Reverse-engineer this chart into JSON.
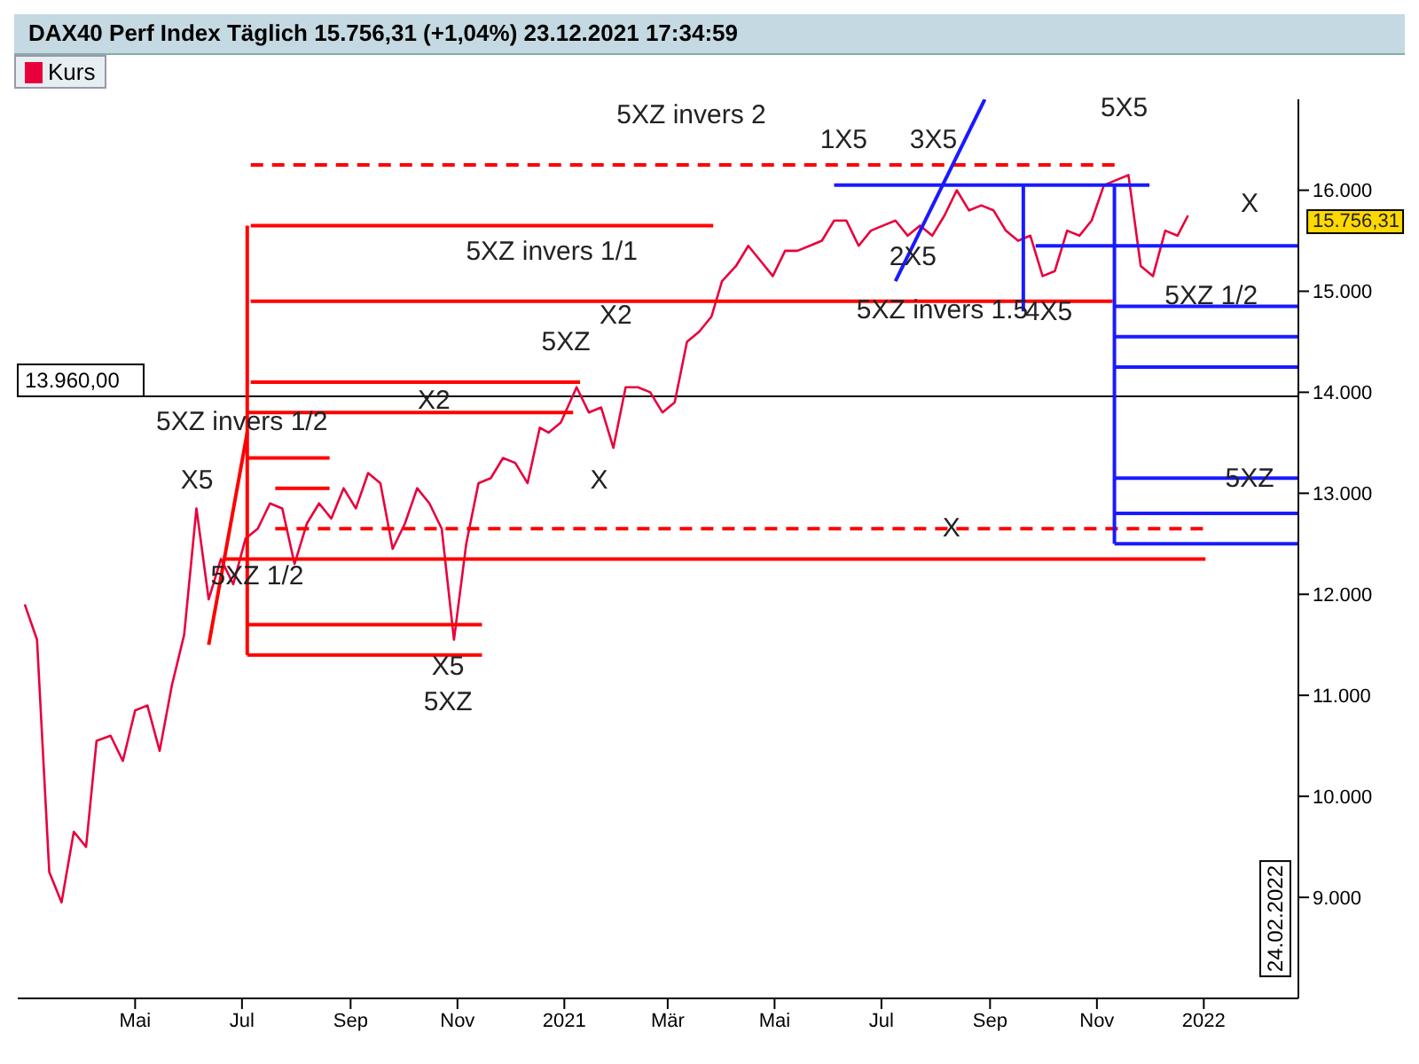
{
  "chart_data": {
    "type": "line",
    "title": "DAX40 Perf Index Täglich 15.756,31 (+1,04%) 23.12.2021 17:34:59",
    "legend": "top left",
    "marker": "none",
    "grid": false,
    "xlim": [
      "2020-02-24",
      "2022-02-24"
    ],
    "xticks": [
      {
        "value": "2020-05-01",
        "label": "Mai"
      },
      {
        "value": "2020-07-01",
        "label": "Jul"
      },
      {
        "value": "2020-09-01",
        "label": "Sep"
      },
      {
        "value": "2020-11-01",
        "label": "Nov"
      },
      {
        "value": "2021-01-01",
        "label": "2021"
      },
      {
        "value": "2021-03-01",
        "label": "Mär"
      },
      {
        "value": "2021-05-01",
        "label": "Mai"
      },
      {
        "value": "2021-07-01",
        "label": "Jul"
      },
      {
        "value": "2021-09-01",
        "label": "Sep"
      },
      {
        "value": "2021-11-01",
        "label": "Nov"
      },
      {
        "value": "2022-01-01",
        "label": "2022"
      }
    ],
    "ylim": [
      8000,
      16900
    ],
    "yticks": [
      {
        "value": 9000,
        "label": "9.000"
      },
      {
        "value": 10000,
        "label": "10.000"
      },
      {
        "value": 11000,
        "label": "11.000"
      },
      {
        "value": 12000,
        "label": "12.000"
      },
      {
        "value": 13000,
        "label": "13.000"
      },
      {
        "value": 14000,
        "label": "14.000"
      },
      {
        "value": 15000,
        "label": "15.000"
      },
      {
        "value": 16000,
        "label": "16.000"
      }
    ],
    "series": [
      {
        "name": "Kurs",
        "color": "#e8003d",
        "x": [
          "2020-02-28",
          "2020-03-06",
          "2020-03-13",
          "2020-03-20",
          "2020-03-27",
          "2020-04-03",
          "2020-04-09",
          "2020-04-17",
          "2020-04-24",
          "2020-05-01",
          "2020-05-08",
          "2020-05-15",
          "2020-05-22",
          "2020-05-29",
          "2020-06-05",
          "2020-06-12",
          "2020-06-19",
          "2020-06-26",
          "2020-07-03",
          "2020-07-10",
          "2020-07-17",
          "2020-07-24",
          "2020-07-31",
          "2020-08-07",
          "2020-08-14",
          "2020-08-21",
          "2020-08-28",
          "2020-09-04",
          "2020-09-11",
          "2020-09-18",
          "2020-09-25",
          "2020-10-02",
          "2020-10-09",
          "2020-10-16",
          "2020-10-23",
          "2020-10-30",
          "2020-11-06",
          "2020-11-13",
          "2020-11-20",
          "2020-11-27",
          "2020-12-04",
          "2020-12-11",
          "2020-12-18",
          "2020-12-23",
          "2020-12-30",
          "2021-01-08",
          "2021-01-15",
          "2021-01-22",
          "2021-01-29",
          "2021-02-05",
          "2021-02-12",
          "2021-02-19",
          "2021-02-26",
          "2021-03-05",
          "2021-03-12",
          "2021-03-19",
          "2021-03-26",
          "2021-04-01",
          "2021-04-09",
          "2021-04-16",
          "2021-04-23",
          "2021-04-30",
          "2021-05-07",
          "2021-05-14",
          "2021-05-21",
          "2021-05-28",
          "2021-06-04",
          "2021-06-11",
          "2021-06-18",
          "2021-06-25",
          "2021-07-02",
          "2021-07-09",
          "2021-07-16",
          "2021-07-23",
          "2021-07-30",
          "2021-08-06",
          "2021-08-13",
          "2021-08-20",
          "2021-08-27",
          "2021-09-03",
          "2021-09-10",
          "2021-09-17",
          "2021-09-24",
          "2021-10-01",
          "2021-10-08",
          "2021-10-15",
          "2021-10-22",
          "2021-10-29",
          "2021-11-05",
          "2021-11-12",
          "2021-11-19",
          "2021-11-26",
          "2021-12-03",
          "2021-12-10",
          "2021-12-17",
          "2021-12-23"
        ],
        "values": [
          11900,
          11550,
          9250,
          8950,
          9650,
          9500,
          10550,
          10600,
          10350,
          10850,
          10900,
          10450,
          11100,
          11600,
          12850,
          11950,
          12350,
          12100,
          12550,
          12650,
          12900,
          12850,
          12300,
          12700,
          12900,
          12750,
          13050,
          12850,
          13200,
          13100,
          12450,
          12700,
          13050,
          12900,
          12650,
          11550,
          12500,
          13100,
          13150,
          13350,
          13300,
          13100,
          13650,
          13600,
          13700,
          14050,
          13800,
          13850,
          13450,
          14050,
          14050,
          14000,
          13800,
          13900,
          14500,
          14600,
          14750,
          15100,
          15250,
          15450,
          15300,
          15150,
          15400,
          15400,
          15450,
          15500,
          15700,
          15700,
          15450,
          15600,
          15650,
          15700,
          15550,
          15650,
          15550,
          15750,
          16000,
          15800,
          15850,
          15800,
          15600,
          15500,
          15550,
          15150,
          15200,
          15600,
          15550,
          15700,
          16050,
          16100,
          16150,
          15250,
          15150,
          15600,
          15550,
          15750
        ]
      },
      {
        "color": "#ff0000",
        "line_style": "dashed",
        "x": [
          "2020-07-06",
          "2021-11-15"
        ],
        "values": [
          16250,
          16250
        ]
      },
      {
        "color": "#ff0000",
        "x": [
          "2020-07-06",
          "2021-03-27"
        ],
        "values": [
          15650,
          15650
        ]
      },
      {
        "color": "#ff0000",
        "x": [
          "2020-07-06",
          "2021-11-10"
        ],
        "values": [
          14900,
          14900
        ]
      },
      {
        "color": "#ff0000",
        "x": [
          "2020-07-06",
          "2021-01-10"
        ],
        "values": [
          14100,
          14100
        ]
      },
      {
        "color": "#ff0000",
        "x": [
          "2020-07-04",
          "2021-01-06"
        ],
        "values": [
          13800,
          13800
        ]
      },
      {
        "color": "#ff0000",
        "x": [
          "2020-07-04",
          "2020-08-20"
        ],
        "values": [
          13350,
          13350
        ]
      },
      {
        "color": "#ff0000",
        "x": [
          "2020-07-20",
          "2020-08-20"
        ],
        "values": [
          13050,
          13050
        ]
      },
      {
        "color": "#ff0000",
        "line_style": "dashed",
        "x": [
          "2020-07-20",
          "2022-01-01"
        ],
        "values": [
          12650,
          12650
        ]
      },
      {
        "color": "#ff0000",
        "x": [
          "2020-06-20",
          "2022-01-02"
        ],
        "values": [
          12350,
          12350
        ]
      },
      {
        "color": "#ff0000",
        "x": [
          "2020-07-04",
          "2020-11-15"
        ],
        "values": [
          11700,
          11700
        ]
      },
      {
        "color": "#ff0000",
        "x": [
          "2020-07-04",
          "2020-11-15"
        ],
        "values": [
          11400,
          11400
        ]
      },
      {
        "color": "#ff0000",
        "x": [
          "2020-07-04",
          "2020-07-04"
        ],
        "values": [
          11400,
          15650
        ]
      },
      {
        "color": "#ff0000",
        "x": [
          "2020-06-12",
          "2020-07-04"
        ],
        "values": [
          11500,
          13600
        ]
      },
      {
        "color": "#1a1aff",
        "x": [
          "2021-06-04",
          "2021-12-01"
        ],
        "values": [
          16050,
          16050
        ]
      },
      {
        "color": "#1a1aff",
        "x": [
          "2021-07-09",
          "2021-08-29"
        ],
        "values": [
          15100,
          16900
        ]
      },
      {
        "color": "#1a1aff",
        "x": [
          "2021-09-20",
          "2021-09-20"
        ],
        "values": [
          14800,
          16050
        ]
      },
      {
        "color": "#1a1aff",
        "x": [
          "2021-09-27",
          "2022-02-24"
        ],
        "values": [
          15450,
          15450
        ]
      },
      {
        "color": "#1a1aff",
        "x": [
          "2021-11-11",
          "2021-11-11"
        ],
        "values": [
          12500,
          16050
        ]
      },
      {
        "color": "#1a1aff",
        "x": [
          "2021-11-11",
          "2022-02-24"
        ],
        "values": [
          14850,
          14850
        ]
      },
      {
        "color": "#1a1aff",
        "x": [
          "2021-11-11",
          "2022-02-24"
        ],
        "values": [
          14550,
          14550
        ]
      },
      {
        "color": "#1a1aff",
        "x": [
          "2021-11-11",
          "2022-02-24"
        ],
        "values": [
          14250,
          14250
        ]
      },
      {
        "color": "#1a1aff",
        "x": [
          "2021-11-11",
          "2022-02-24"
        ],
        "values": [
          13150,
          13150
        ]
      },
      {
        "color": "#1a1aff",
        "x": [
          "2021-11-11",
          "2022-02-24"
        ],
        "values": [
          12800,
          12800
        ]
      },
      {
        "color": "#1a1aff",
        "x": [
          "2021-11-11",
          "2022-02-24"
        ],
        "values": [
          12500,
          12500
        ]
      }
    ],
    "ref_lines": [
      {
        "axis": "y",
        "value": 13960,
        "label": "13.960,00",
        "color": "#000000"
      }
    ],
    "annotations": [
      "5XZ invers 2",
      "1X5",
      "3X5",
      "5X5",
      "X",
      "15.756,31",
      "2X5",
      "5XZ invers 1.5",
      "4X5",
      "5XZ 1/2",
      "5XZ invers 1/1",
      "X2",
      "5XZ",
      "X2",
      "5XZ invers 1/2",
      "X5",
      "X",
      "X",
      "5XZ 1/2",
      "X5",
      "5XZ",
      "5XZ",
      "24.02.2022"
    ]
  }
}
